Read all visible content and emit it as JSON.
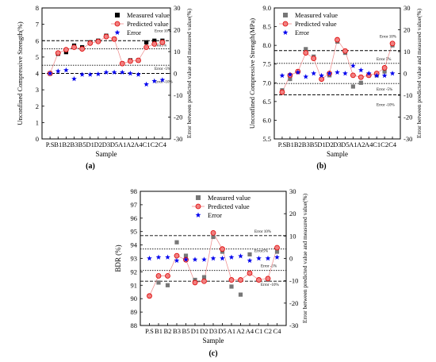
{
  "figure": {
    "samples": [
      "P.S",
      "B1",
      "B2",
      "B3",
      "B5",
      "D1",
      "D2",
      "D3",
      "D5",
      "A1",
      "A2",
      "A4",
      "C1",
      "C2",
      "C4"
    ],
    "colors": {
      "measured": "#000000",
      "predicted_fill": "#f08080",
      "predicted_edge": "#e00000",
      "error": "#0000ee",
      "measured_grey": "#777777"
    }
  },
  "chart_data": [
    {
      "type": "scatter",
      "panel_label": "(a)",
      "xlabel": "Sample",
      "ylabel": "Unconfined Compressive Strength(%)",
      "y2label": "Error between predicted value and measured value(%)",
      "categories": [
        "P.S",
        "B1",
        "B2",
        "B3",
        "B5",
        "D1",
        "D2",
        "D3",
        "D5",
        "A1",
        "A2",
        "A4",
        "C1",
        "C2",
        "C4"
      ],
      "ylim": [
        0,
        8
      ],
      "yticks": [
        "0",
        "1",
        "2",
        "3",
        "4",
        "5",
        "6",
        "7",
        "8"
      ],
      "y2lim": [
        -30,
        30
      ],
      "y2ticks": [
        "-30",
        "-20",
        "-10",
        "0",
        "10",
        "20",
        "30"
      ],
      "legend": [
        "Measured value",
        "Predicted value",
        "Error"
      ],
      "legend_position": "top-right",
      "reference_lines": [
        {
          "label": "Error 10%",
          "y": 6.0
        },
        {
          "label": "Error5%",
          "y": 5.5
        },
        {
          "label": "Error -5%",
          "y": 4.5
        },
        {
          "label": "Error -10%",
          "y": 4.0
        }
      ],
      "series": [
        {
          "name": "Measured value",
          "values": [
            4.0,
            5.2,
            5.3,
            5.7,
            5.6,
            5.9,
            6.0,
            6.3,
            6.1,
            4.6,
            4.8,
            4.8,
            5.9,
            6.0,
            6.0
          ]
        },
        {
          "name": "Predicted value",
          "values": [
            4.0,
            5.25,
            5.45,
            5.6,
            5.5,
            5.85,
            5.95,
            6.25,
            6.1,
            4.6,
            4.75,
            4.8,
            5.6,
            5.8,
            5.9
          ]
        },
        {
          "name": "Error",
          "values": [
            0.0,
            1.0,
            1.5,
            -2.5,
            -0.5,
            -0.5,
            -0.3,
            0.5,
            0.5,
            0.5,
            0.0,
            -0.5,
            -5.0,
            -3.5,
            -3.0
          ]
        }
      ]
    },
    {
      "type": "scatter",
      "panel_label": "(b)",
      "xlabel": "Sample",
      "ylabel": "Unconfined Compressive Strength(MPa)",
      "y2label": "Error between predicted value and measured value(%)",
      "categories": [
        "P.S",
        "B1",
        "B2",
        "B3",
        "B5",
        "D1",
        "D2",
        "D3",
        "D5",
        "A1",
        "A2",
        "A4",
        "C1",
        "C2",
        "C4"
      ],
      "ylim": [
        5.5,
        9.0
      ],
      "yticks": [
        "5.5",
        "6.0",
        "6.5",
        "7.0",
        "7.5",
        "8.0",
        "8.5",
        "9.0"
      ],
      "y2lim": [
        -30,
        30
      ],
      "y2ticks": [
        "-30",
        "-20",
        "-10",
        "0",
        "10",
        "20",
        "30"
      ],
      "legend": [
        "Measured value",
        "Predicted value",
        "Error"
      ],
      "legend_position": "top-left",
      "reference_lines": [
        {
          "label": "Error 10%",
          "y": 7.86
        },
        {
          "label": "Error 5%",
          "y": 7.52
        },
        {
          "label": "Error -5%",
          "y": 6.98
        },
        {
          "label": "Error -10%",
          "y": 6.68
        }
      ],
      "series": [
        {
          "name": "Measured value",
          "values": [
            6.8,
            7.1,
            7.3,
            7.9,
            7.7,
            7.1,
            7.2,
            8.1,
            7.8,
            6.9,
            7.0,
            7.2,
            7.2,
            7.3,
            8.0
          ]
        },
        {
          "name": "Predicted value",
          "values": [
            6.75,
            7.2,
            7.3,
            7.8,
            7.65,
            7.1,
            7.25,
            8.15,
            7.85,
            7.2,
            7.15,
            7.2,
            7.25,
            7.4,
            8.05
          ]
        },
        {
          "name": "Error",
          "values": [
            -1.0,
            -0.5,
            0.5,
            -1.5,
            0.0,
            -1.0,
            0.0,
            0.5,
            0.0,
            3.5,
            1.5,
            0.0,
            -1.0,
            -1.0,
            0.0
          ]
        }
      ]
    },
    {
      "type": "scatter",
      "panel_label": "(c)",
      "xlabel": "Sample",
      "ylabel": "BDR (%)",
      "y2label": "Error between predicted value and measured value(%)",
      "categories": [
        "P.S",
        "B1",
        "B2",
        "B3",
        "B5",
        "D1",
        "D2",
        "D3",
        "D5",
        "A1",
        "A2",
        "A4",
        "C1",
        "C2",
        "C4"
      ],
      "ylim": [
        88,
        98
      ],
      "yticks": [
        "88",
        "89",
        "90",
        "91",
        "92",
        "93",
        "94",
        "95",
        "96",
        "97",
        "98"
      ],
      "y2lim": [
        -30,
        30
      ],
      "y2ticks": [
        "-30",
        "-20",
        "-10",
        "0",
        "10",
        "20",
        "30"
      ],
      "legend": [
        "Measured value",
        "Predicted value",
        "Error"
      ],
      "legend_position": "top-center",
      "reference_lines": [
        {
          "label": "Error 10%",
          "y": 94.7
        },
        {
          "label": "Error5%",
          "y": 93.7
        },
        {
          "label": "Error -5%",
          "y": 92.1
        },
        {
          "label": "Error -10%",
          "y": 91.3
        }
      ],
      "series": [
        {
          "name": "Measured value",
          "values": [
            90.2,
            91.2,
            91.0,
            94.2,
            93.2,
            91.4,
            91.6,
            94.6,
            93.5,
            90.9,
            90.3,
            93.3,
            91.4,
            91.4,
            93.5
          ]
        },
        {
          "name": "Predicted value",
          "values": [
            90.2,
            91.7,
            91.7,
            93.2,
            92.9,
            91.2,
            91.3,
            94.9,
            93.7,
            91.4,
            91.4,
            91.9,
            91.4,
            91.5,
            93.8
          ]
        },
        {
          "name": "Error",
          "values": [
            0.0,
            0.5,
            0.5,
            -1.0,
            -0.5,
            -0.5,
            -0.5,
            0.0,
            0.0,
            0.5,
            1.0,
            -1.0,
            0.0,
            0.0,
            0.5
          ]
        }
      ]
    }
  ]
}
